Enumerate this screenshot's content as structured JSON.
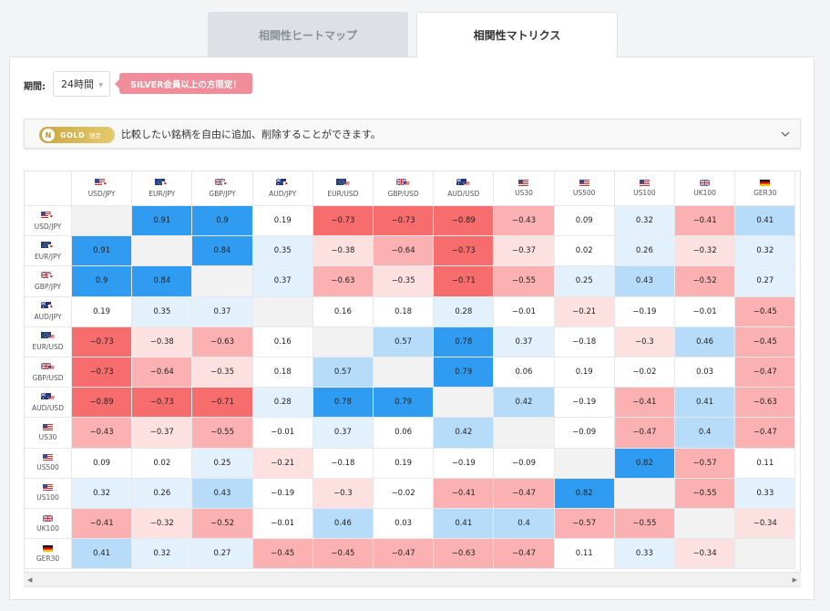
{
  "tabs": [
    {
      "label": "相関性ヒートマップ",
      "active": false
    },
    {
      "label": "相関性マトリクス",
      "active": true
    }
  ],
  "controls": {
    "period_label": "期間:",
    "period_value": "24時間",
    "silver_note": "SILVER会員以上の方限定！"
  },
  "gold_bar": {
    "badge_word": "GOLD",
    "badge_limit": "限定",
    "badge_coin": "N",
    "text": "比較したい銘柄を自由に追加、削除することができます。"
  },
  "symbols": [
    {
      "name": "USD/JPY",
      "flags": [
        "us",
        "jp"
      ]
    },
    {
      "name": "EUR/JPY",
      "flags": [
        "eu",
        "jp"
      ]
    },
    {
      "name": "GBP/JPY",
      "flags": [
        "gb",
        "jp"
      ]
    },
    {
      "name": "AUD/JPY",
      "flags": [
        "au",
        "jp"
      ]
    },
    {
      "name": "EUR/USD",
      "flags": [
        "eu",
        "us"
      ]
    },
    {
      "name": "GBP/USD",
      "flags": [
        "gb",
        "us"
      ]
    },
    {
      "name": "AUD/USD",
      "flags": [
        "au",
        "us"
      ]
    },
    {
      "name": "US30",
      "flags": [
        "us"
      ]
    },
    {
      "name": "US500",
      "flags": [
        "us"
      ]
    },
    {
      "name": "US100",
      "flags": [
        "us"
      ]
    },
    {
      "name": "UK100",
      "flags": [
        "gb"
      ]
    },
    {
      "name": "GER30",
      "flags": [
        "de"
      ]
    }
  ],
  "matrix": [
    [
      null,
      0.91,
      0.9,
      0.19,
      -0.73,
      -0.73,
      -0.89,
      -0.43,
      0.09,
      0.32,
      -0.41,
      0.41
    ],
    [
      0.91,
      null,
      0.84,
      0.35,
      -0.38,
      -0.64,
      -0.73,
      -0.37,
      0.02,
      0.26,
      -0.32,
      0.32
    ],
    [
      0.9,
      0.84,
      null,
      0.37,
      -0.63,
      -0.35,
      -0.71,
      -0.55,
      0.25,
      0.43,
      -0.52,
      0.27
    ],
    [
      0.19,
      0.35,
      0.37,
      null,
      0.16,
      0.18,
      0.28,
      -0.01,
      -0.21,
      -0.19,
      -0.01,
      -0.45
    ],
    [
      -0.73,
      -0.38,
      -0.63,
      0.16,
      null,
      0.57,
      0.78,
      0.37,
      -0.18,
      -0.3,
      0.46,
      -0.45
    ],
    [
      -0.73,
      -0.64,
      -0.35,
      0.18,
      0.57,
      null,
      0.79,
      0.06,
      0.19,
      -0.02,
      0.03,
      -0.47
    ],
    [
      -0.89,
      -0.73,
      -0.71,
      0.28,
      0.78,
      0.79,
      null,
      0.42,
      -0.19,
      -0.41,
      0.41,
      -0.63
    ],
    [
      -0.43,
      -0.37,
      -0.55,
      -0.01,
      0.37,
      0.06,
      0.42,
      null,
      -0.09,
      -0.47,
      0.4,
      -0.47
    ],
    [
      0.09,
      0.02,
      0.25,
      -0.21,
      -0.18,
      0.19,
      -0.19,
      -0.09,
      null,
      0.82,
      -0.57,
      0.11
    ],
    [
      0.32,
      0.26,
      0.43,
      -0.19,
      -0.3,
      -0.02,
      -0.41,
      -0.47,
      0.82,
      null,
      -0.55,
      0.33
    ],
    [
      -0.41,
      -0.32,
      -0.52,
      -0.01,
      0.46,
      0.03,
      0.41,
      0.4,
      -0.57,
      -0.55,
      null,
      -0.34
    ],
    [
      0.41,
      0.32,
      0.27,
      -0.45,
      -0.45,
      -0.47,
      -0.63,
      -0.47,
      0.11,
      0.33,
      -0.34,
      null
    ]
  ],
  "colors": {
    "diag": "#f2f2f2",
    "blue_strong": "#2f9cf2",
    "blue_mid": "#b6dcfa",
    "blue_light": "#e3f1fc",
    "neutral": "#ffffff",
    "red_light": "#fde0e0",
    "red_mid": "#fbb1b1",
    "red_strong": "#f76c6c"
  }
}
